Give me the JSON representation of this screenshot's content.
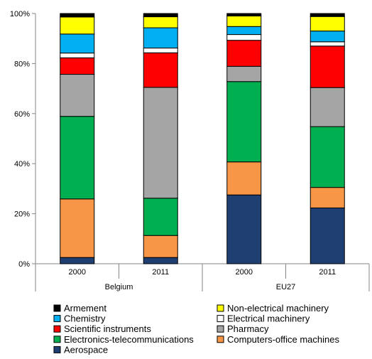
{
  "chart_data": {
    "type": "bar",
    "stacked": true,
    "normalized": true,
    "categories": [
      "2000",
      "2011",
      "2000",
      "2011"
    ],
    "groups": [
      {
        "label": "Belgium",
        "categories": [
          0,
          1
        ]
      },
      {
        "label": "EU27",
        "categories": [
          2,
          3
        ]
      }
    ],
    "yticks": [
      "0%",
      "20%",
      "40%",
      "60%",
      "80%",
      "100%"
    ],
    "ylim": [
      0,
      100
    ],
    "grid": false,
    "legend_position": "bottom",
    "series": [
      {
        "name": "Aerospace",
        "color": "#1f3f73",
        "values": [
          2.5,
          2.5,
          27.5,
          22.3
        ]
      },
      {
        "name": "Computers-office machines",
        "color": "#f79646",
        "values": [
          23.4,
          8.8,
          13.2,
          8.2
        ]
      },
      {
        "name": "Electronics-telecommunications",
        "color": "#00b050",
        "values": [
          33.0,
          14.9,
          32.1,
          24.3
        ]
      },
      {
        "name": "Pharmacy",
        "color": "#a5a5a5",
        "values": [
          16.8,
          44.3,
          6.1,
          15.6
        ]
      },
      {
        "name": "Scientific instruments",
        "color": "#ff0000",
        "values": [
          6.6,
          13.8,
          10.4,
          16.6
        ]
      },
      {
        "name": "Electrical machinery",
        "color": "#ffffff",
        "values": [
          1.9,
          1.9,
          2.3,
          1.7
        ]
      },
      {
        "name": "Chemistry",
        "color": "#00b0f0",
        "values": [
          7.6,
          8.1,
          3.2,
          4.3
        ]
      },
      {
        "name": "Non-electrical machinery",
        "color": "#ffff00",
        "values": [
          6.8,
          4.4,
          4.2,
          5.8
        ]
      },
      {
        "name": "Armement",
        "color": "#000000",
        "values": [
          1.4,
          1.3,
          1.0,
          1.2
        ]
      }
    ],
    "legend_order": [
      "Armement",
      "Non-electrical machinery",
      "Chemistry",
      "Electrical machinery",
      "Scientific instruments",
      "Pharmacy",
      "Electronics-telecommunications",
      "Computers-office machines",
      "Aerospace"
    ]
  }
}
